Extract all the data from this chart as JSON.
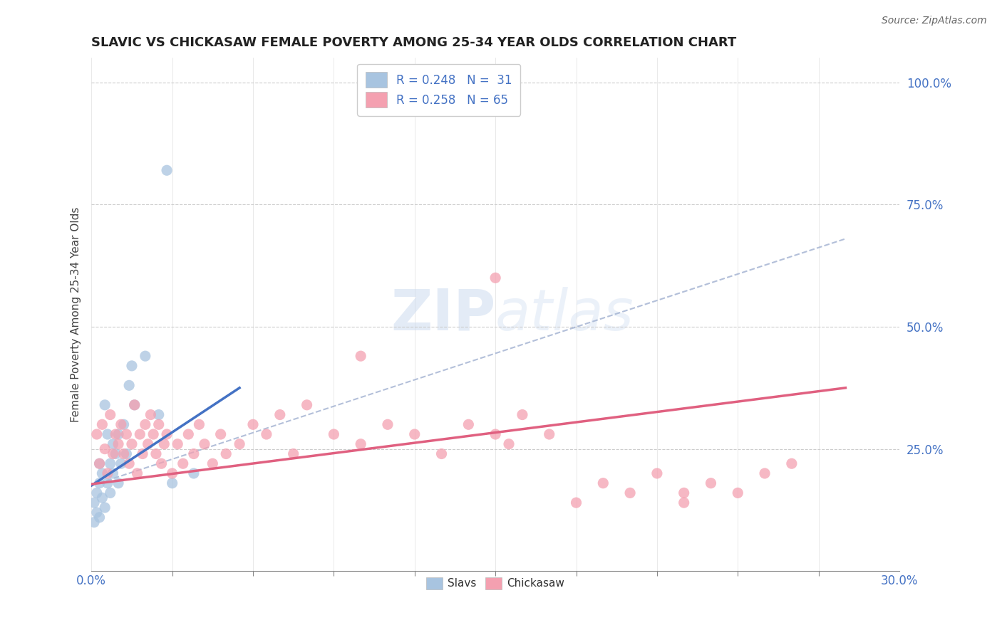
{
  "title": "SLAVIC VS CHICKASAW FEMALE POVERTY AMONG 25-34 YEAR OLDS CORRELATION CHART",
  "source": "Source: ZipAtlas.com",
  "ylabel": "Female Poverty Among 25-34 Year Olds",
  "legend_r1": "R = 0.248",
  "legend_n1": "N =  31",
  "legend_r2": "R = 0.258",
  "legend_n2": "N = 65",
  "slavs_color": "#a8c4e0",
  "chickasaw_color": "#f4a0b0",
  "slavs_line_color": "#4472c4",
  "chickasaw_line_color": "#e06080",
  "dashed_line_color": "#a0b0d0",
  "watermark_zip": "ZIP",
  "watermark_atlas": "atlas",
  "slavs_x": [
    0.001,
    0.001,
    0.002,
    0.002,
    0.003,
    0.003,
    0.003,
    0.004,
    0.004,
    0.005,
    0.005,
    0.006,
    0.006,
    0.007,
    0.007,
    0.008,
    0.008,
    0.009,
    0.01,
    0.01,
    0.011,
    0.012,
    0.013,
    0.014,
    0.015,
    0.016,
    0.02,
    0.025,
    0.03,
    0.038,
    0.028
  ],
  "slavs_y": [
    0.1,
    0.14,
    0.12,
    0.16,
    0.11,
    0.18,
    0.22,
    0.15,
    0.2,
    0.13,
    0.34,
    0.18,
    0.28,
    0.16,
    0.22,
    0.2,
    0.26,
    0.24,
    0.18,
    0.28,
    0.22,
    0.3,
    0.24,
    0.38,
    0.42,
    0.34,
    0.44,
    0.32,
    0.18,
    0.2,
    0.82
  ],
  "chickasaw_x": [
    0.002,
    0.003,
    0.004,
    0.005,
    0.006,
    0.007,
    0.008,
    0.009,
    0.01,
    0.011,
    0.012,
    0.013,
    0.014,
    0.015,
    0.016,
    0.017,
    0.018,
    0.019,
    0.02,
    0.021,
    0.022,
    0.023,
    0.024,
    0.025,
    0.026,
    0.027,
    0.028,
    0.03,
    0.032,
    0.034,
    0.036,
    0.038,
    0.04,
    0.042,
    0.045,
    0.048,
    0.05,
    0.055,
    0.06,
    0.065,
    0.07,
    0.075,
    0.08,
    0.09,
    0.1,
    0.11,
    0.12,
    0.13,
    0.14,
    0.15,
    0.155,
    0.16,
    0.17,
    0.18,
    0.19,
    0.2,
    0.21,
    0.22,
    0.23,
    0.24,
    0.25,
    0.26,
    0.15,
    0.1,
    0.22
  ],
  "chickasaw_y": [
    0.28,
    0.22,
    0.3,
    0.25,
    0.2,
    0.32,
    0.24,
    0.28,
    0.26,
    0.3,
    0.24,
    0.28,
    0.22,
    0.26,
    0.34,
    0.2,
    0.28,
    0.24,
    0.3,
    0.26,
    0.32,
    0.28,
    0.24,
    0.3,
    0.22,
    0.26,
    0.28,
    0.2,
    0.26,
    0.22,
    0.28,
    0.24,
    0.3,
    0.26,
    0.22,
    0.28,
    0.24,
    0.26,
    0.3,
    0.28,
    0.32,
    0.24,
    0.34,
    0.28,
    0.26,
    0.3,
    0.28,
    0.24,
    0.3,
    0.28,
    0.26,
    0.32,
    0.28,
    0.14,
    0.18,
    0.16,
    0.2,
    0.14,
    0.18,
    0.16,
    0.2,
    0.22,
    0.6,
    0.44,
    0.16
  ],
  "slavs_line_x": [
    0.0,
    0.055
  ],
  "slavs_line_y": [
    0.175,
    0.375
  ],
  "chickasaw_line_x": [
    0.0,
    0.28
  ],
  "chickasaw_line_y": [
    0.178,
    0.375
  ],
  "dashed_line_x": [
    0.0,
    0.28
  ],
  "dashed_line_y": [
    0.175,
    0.68
  ],
  "xlim": [
    0.0,
    0.3
  ],
  "ylim": [
    0.0,
    1.05
  ],
  "yticks": [
    0.25,
    0.5,
    0.75,
    1.0
  ],
  "ytick_labels": [
    "25.0%",
    "50.0%",
    "75.0%",
    "100.0%"
  ],
  "title_fontsize": 13,
  "axis_fontsize": 12,
  "legend_fontsize": 12
}
